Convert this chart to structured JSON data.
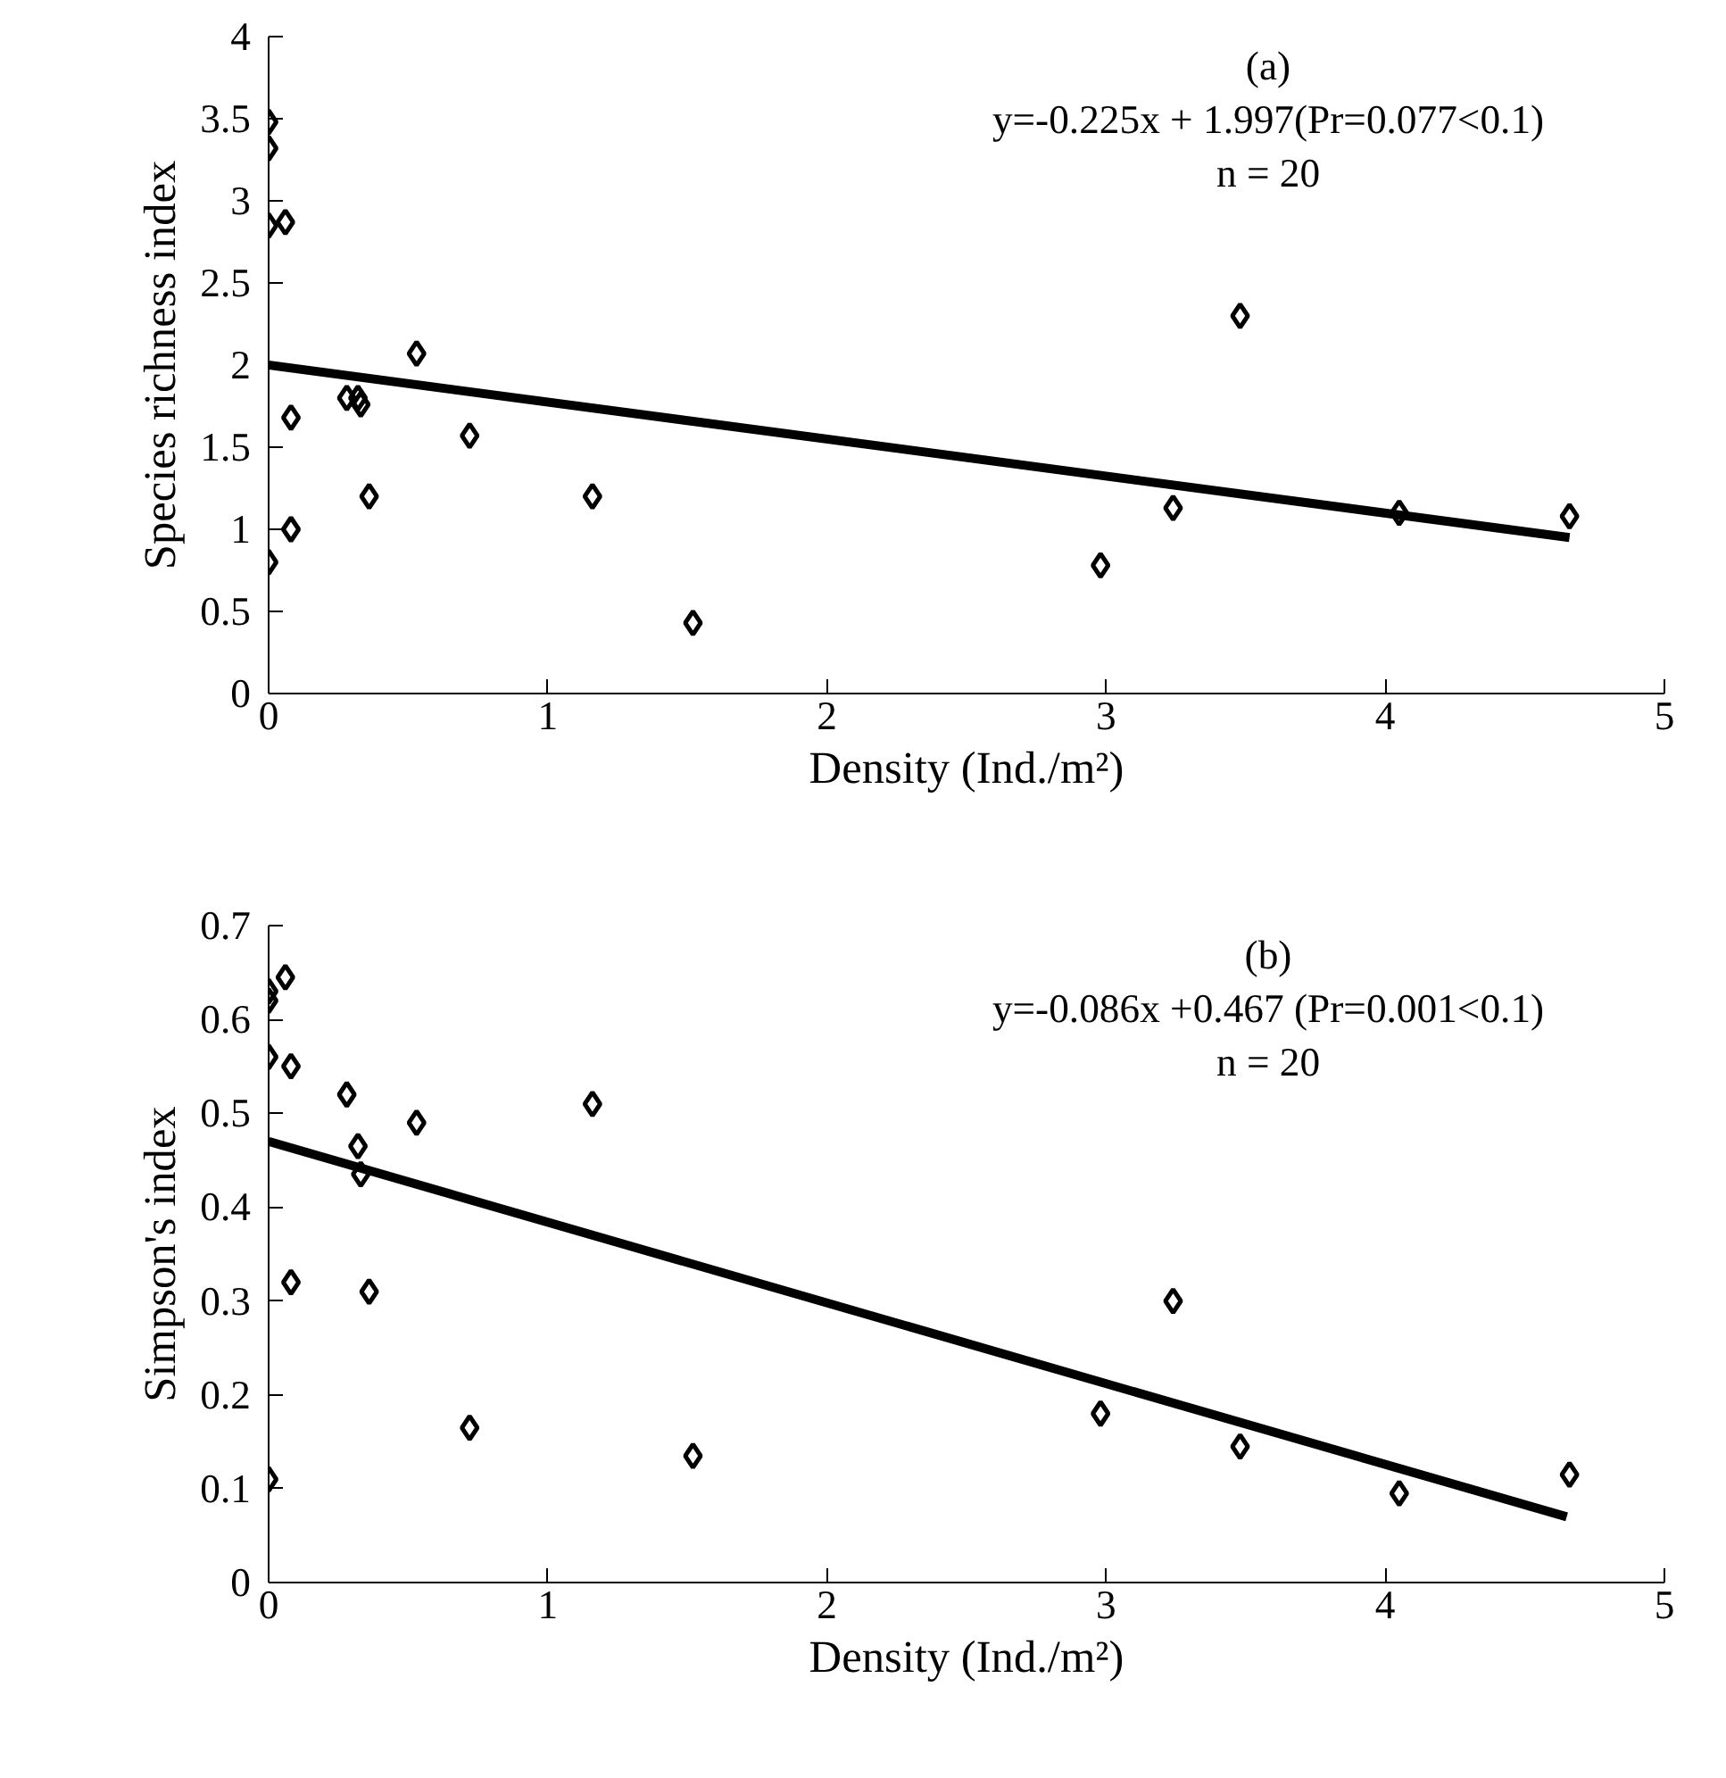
{
  "chart_data": [
    {
      "type": "scatter",
      "title": "(a)",
      "xlabel": "Density (Ind./m²)",
      "ylabel": "Species richness index",
      "annotations": [
        "y=-0.225x + 1.997(Pr=0.077<0.1)",
        "n = 20"
      ],
      "xlim": [
        0,
        5
      ],
      "xticks": [
        0,
        1,
        2,
        3,
        4,
        5
      ],
      "ylim": [
        0,
        4
      ],
      "yticks": [
        0,
        0.5,
        1,
        1.5,
        2,
        2.5,
        3,
        3.5,
        4
      ],
      "grid": false,
      "series": [
        {
          "marker": "diamond",
          "color": "#000000",
          "x": [
            0,
            0,
            0,
            0.06,
            0,
            0.08,
            0.08,
            0.28,
            0.32,
            0.33,
            0.36,
            0.53,
            0.72,
            1.16,
            1.52,
            2.98,
            3.24,
            3.48,
            4.05,
            4.66
          ],
          "values": [
            3.48,
            3.32,
            2.85,
            2.87,
            0.8,
            1.0,
            1.68,
            1.8,
            1.8,
            1.76,
            1.2,
            2.07,
            1.57,
            1.2,
            0.43,
            0.78,
            1.13,
            2.3,
            1.1,
            1.08
          ]
        },
        {
          "type": "line",
          "color": "#000000",
          "x": [
            0,
            4.66
          ],
          "values": [
            2.0,
            0.95
          ]
        }
      ]
    },
    {
      "type": "scatter",
      "title": "(b)",
      "xlabel": "Density (Ind./m²)",
      "ylabel": "Simpson's index",
      "annotations": [
        "y=-0.086x +0.467 (Pr=0.001<0.1)",
        "n = 20"
      ],
      "xlim": [
        0,
        5
      ],
      "xticks": [
        0,
        1,
        2,
        3,
        4,
        5
      ],
      "ylim": [
        0,
        0.7
      ],
      "yticks": [
        0,
        0.1,
        0.2,
        0.3,
        0.4,
        0.5,
        0.6,
        0.7
      ],
      "grid": false,
      "series": [
        {
          "marker": "diamond",
          "color": "#000000",
          "x": [
            0,
            0,
            0,
            0.06,
            0,
            0.08,
            0.08,
            0.28,
            0.32,
            0.33,
            0.36,
            0.53,
            0.72,
            1.16,
            1.52,
            2.98,
            3.24,
            3.48,
            4.05,
            4.66
          ],
          "values": [
            0.62,
            0.63,
            0.56,
            0.645,
            0.11,
            0.55,
            0.32,
            0.52,
            0.465,
            0.435,
            0.31,
            0.49,
            0.165,
            0.51,
            0.135,
            0.18,
            0.3,
            0.145,
            0.095,
            0.115
          ]
        },
        {
          "type": "line",
          "color": "#000000",
          "x": [
            0,
            4.65
          ],
          "values": [
            0.47,
            0.07
          ]
        }
      ]
    }
  ]
}
